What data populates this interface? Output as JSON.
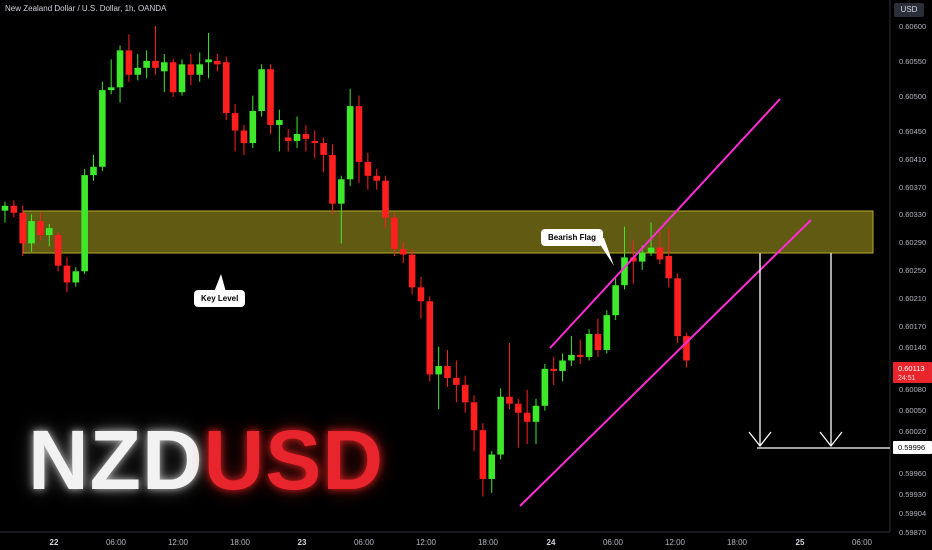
{
  "header": {
    "symbol_title": "New Zealand Dollar / U.S. Dollar, 1h, OANDA",
    "currency": "USD"
  },
  "logo": {
    "part1": "NZD",
    "part2": "USD"
  },
  "colors": {
    "bull": "#3ee82b",
    "bear": "#ff1f1f",
    "zone": "#6b6414",
    "zone_border": "#b7a92a",
    "channel": "#ff2bd4",
    "arrow": "#ffffff",
    "price_tag": "#e8242c"
  },
  "chart_data": {
    "type": "candlestick",
    "x_tick_labels": [
      "22",
      "06:00",
      "12:00",
      "18:00",
      "23",
      "06:00",
      "12:00",
      "18:00",
      "24",
      "06:00",
      "12:00",
      "18:00",
      "25",
      "06:00"
    ],
    "y_tick_labels": [
      "0.60600",
      "0.60550",
      "0.60500",
      "0.60450",
      "0.60410",
      "0.60370",
      "0.60330",
      "0.60290",
      "0.60250",
      "0.60210",
      "0.60170",
      "0.60140",
      "0.60080",
      "0.60050",
      "0.60020",
      "0.59960",
      "0.59930",
      "0.59904",
      "0.59870"
    ],
    "ylim": [
      0.5987,
      0.6062
    ],
    "current_price": {
      "value": "0.60113",
      "countdown": "24:51"
    },
    "target_price": "0.59996",
    "candles": [
      [
        0.60335,
        0.60348,
        0.60318,
        0.60342
      ],
      [
        0.60342,
        0.6035,
        0.60325,
        0.60332
      ],
      [
        0.60332,
        0.60342,
        0.6027,
        0.60288
      ],
      [
        0.60288,
        0.6033,
        0.60276,
        0.6032
      ],
      [
        0.6032,
        0.60332,
        0.60292,
        0.603
      ],
      [
        0.603,
        0.60316,
        0.60284,
        0.6031
      ],
      [
        0.603,
        0.60304,
        0.60248,
        0.60256
      ],
      [
        0.60256,
        0.60268,
        0.60218,
        0.60232
      ],
      [
        0.60232,
        0.60254,
        0.60226,
        0.60248
      ],
      [
        0.60248,
        0.60395,
        0.60244,
        0.60386
      ],
      [
        0.60386,
        0.60415,
        0.60378,
        0.60398
      ],
      [
        0.60398,
        0.6052,
        0.60392,
        0.60508
      ],
      [
        0.60508,
        0.60552,
        0.60502,
        0.60512
      ],
      [
        0.60512,
        0.60572,
        0.6049,
        0.60565
      ],
      [
        0.60565,
        0.60588,
        0.6052,
        0.6053
      ],
      [
        0.6053,
        0.6056,
        0.60522,
        0.6054
      ],
      [
        0.6054,
        0.60565,
        0.60525,
        0.6055
      ],
      [
        0.6055,
        0.606,
        0.6053,
        0.6054
      ],
      [
        0.60535,
        0.6056,
        0.60505,
        0.60548
      ],
      [
        0.60548,
        0.60553,
        0.60498,
        0.60505
      ],
      [
        0.60505,
        0.60552,
        0.605,
        0.60545
      ],
      [
        0.60545,
        0.6056,
        0.60515,
        0.6053
      ],
      [
        0.6053,
        0.60562,
        0.6052,
        0.60545
      ],
      [
        0.60548,
        0.6059,
        0.60525,
        0.60552
      ],
      [
        0.6055,
        0.6056,
        0.60535,
        0.60545
      ],
      [
        0.60548,
        0.60556,
        0.60465,
        0.60475
      ],
      [
        0.60475,
        0.60488,
        0.6042,
        0.6045
      ],
      [
        0.6045,
        0.60458,
        0.60415,
        0.60432
      ],
      [
        0.60432,
        0.605,
        0.60425,
        0.60478
      ],
      [
        0.60478,
        0.60545,
        0.6047,
        0.60538
      ],
      [
        0.60538,
        0.60545,
        0.60445,
        0.60458
      ],
      [
        0.60458,
        0.6048,
        0.6042,
        0.60465
      ],
      [
        0.6044,
        0.60452,
        0.6042,
        0.60435
      ],
      [
        0.60435,
        0.6047,
        0.60425,
        0.60445
      ],
      [
        0.60445,
        0.60458,
        0.6042,
        0.60438
      ],
      [
        0.60435,
        0.6045,
        0.6041,
        0.60432
      ],
      [
        0.60432,
        0.6044,
        0.6039,
        0.60415
      ],
      [
        0.60415,
        0.6043,
        0.6033,
        0.60345
      ],
      [
        0.60345,
        0.60385,
        0.60288,
        0.6038
      ],
      [
        0.6038,
        0.6051,
        0.6037,
        0.60485
      ],
      [
        0.60485,
        0.605,
        0.60375,
        0.60405
      ],
      [
        0.60405,
        0.60418,
        0.60365,
        0.60385
      ],
      [
        0.60385,
        0.60395,
        0.60365,
        0.60378
      ],
      [
        0.60378,
        0.60385,
        0.6031,
        0.60325
      ],
      [
        0.60325,
        0.60332,
        0.6027,
        0.6028
      ],
      [
        0.6028,
        0.6029,
        0.6026,
        0.60272
      ],
      [
        0.60272,
        0.6028,
        0.60215,
        0.60225
      ],
      [
        0.60225,
        0.6024,
        0.6018,
        0.60205
      ],
      [
        0.60205,
        0.60212,
        0.6009,
        0.601
      ],
      [
        0.601,
        0.6014,
        0.6005,
        0.60112
      ],
      [
        0.60112,
        0.60135,
        0.60082,
        0.60095
      ],
      [
        0.60095,
        0.6012,
        0.6006,
        0.60085
      ],
      [
        0.60085,
        0.60098,
        0.60045,
        0.6006
      ],
      [
        0.6006,
        0.6007,
        0.5999,
        0.6002
      ],
      [
        0.6002,
        0.6003,
        0.59925,
        0.5995
      ],
      [
        0.5995,
        0.5999,
        0.5993,
        0.59985
      ],
      [
        0.59985,
        0.6008,
        0.59978,
        0.60068
      ],
      [
        0.60068,
        0.60145,
        0.6005,
        0.60058
      ],
      [
        0.60058,
        0.60065,
        0.59995,
        0.60045
      ],
      [
        0.60045,
        0.60078,
        0.6,
        0.60032
      ],
      [
        0.60032,
        0.60065,
        0.6,
        0.60055
      ],
      [
        0.60055,
        0.60115,
        0.60048,
        0.60108
      ],
      [
        0.60108,
        0.60125,
        0.60085,
        0.60105
      ],
      [
        0.60105,
        0.6013,
        0.6009,
        0.6012
      ],
      [
        0.6012,
        0.60155,
        0.60112,
        0.60128
      ],
      [
        0.60128,
        0.6015,
        0.60115,
        0.60125
      ],
      [
        0.60125,
        0.60165,
        0.6012,
        0.60158
      ],
      [
        0.60158,
        0.6018,
        0.60125,
        0.60135
      ],
      [
        0.60135,
        0.60192,
        0.6013,
        0.60185
      ],
      [
        0.60185,
        0.60238,
        0.60178,
        0.60228
      ],
      [
        0.60228,
        0.60312,
        0.60222,
        0.60268
      ],
      [
        0.60268,
        0.60292,
        0.6023,
        0.60262
      ],
      [
        0.60262,
        0.60285,
        0.6025,
        0.60275
      ],
      [
        0.60275,
        0.60318,
        0.6027,
        0.60282
      ],
      [
        0.60282,
        0.60305,
        0.60258,
        0.60265
      ],
      [
        0.6027,
        0.6031,
        0.60225,
        0.60238
      ],
      [
        0.60238,
        0.60245,
        0.60145,
        0.60155
      ],
      [
        0.60155,
        0.6016,
        0.6011,
        0.6012
      ]
    ]
  },
  "annotations": {
    "key_level": "Key Level",
    "bearish_flag": "Bearish Flag"
  }
}
